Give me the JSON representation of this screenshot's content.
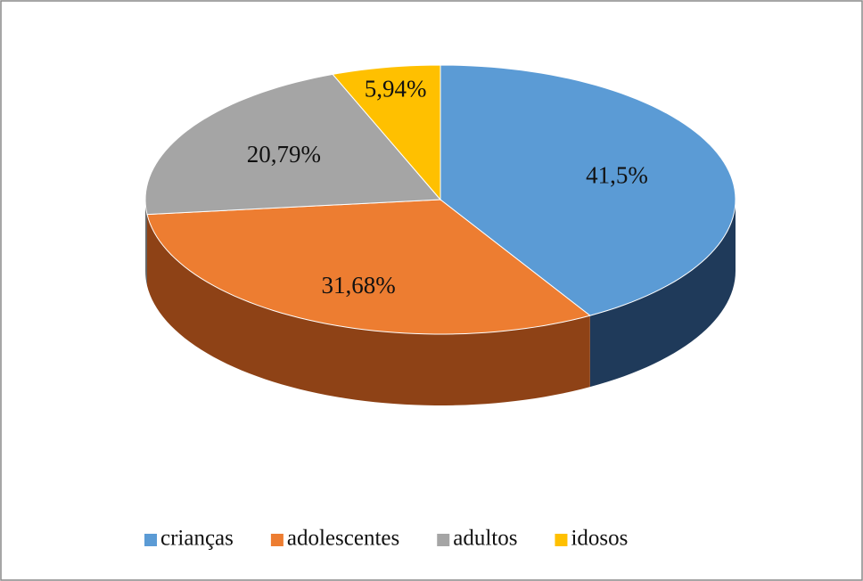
{
  "chart_data": {
    "type": "pie",
    "categories": [
      "crianças",
      "adolescentes",
      "adultos",
      "idosos"
    ],
    "values": [
      41.5,
      31.68,
      20.79,
      5.94
    ],
    "value_labels": [
      "41,5%",
      "31,68%",
      "20,79%",
      "5,94%"
    ],
    "colors": [
      "#5b9bd5",
      "#ed7d31",
      "#a5a5a5",
      "#ffc000"
    ],
    "side_colors": [
      "#1f3a5a",
      "#8e4216",
      "#666666",
      "#a07a00"
    ],
    "legend": "bottom"
  }
}
